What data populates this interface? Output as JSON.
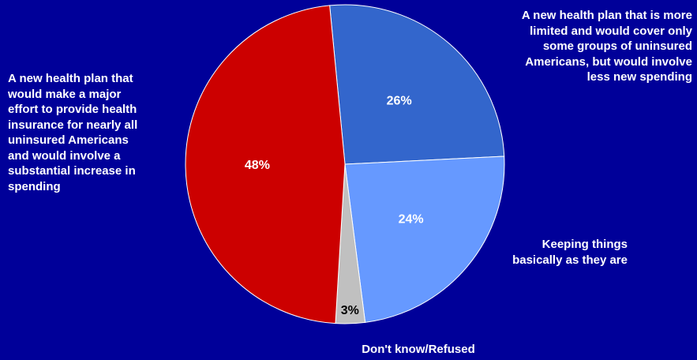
{
  "chart_data": {
    "type": "pie",
    "title": "",
    "slices": [
      {
        "label": "A new health plan that is more\nlimited and would cover only\nsome groups of uninsured\nAmericans, but would involve\nless new spending",
        "value": 26,
        "value_label": "26%",
        "color": "#3366CC",
        "value_text_color": "#FFFFFF"
      },
      {
        "label": "Keeping things\nbasically as they are",
        "value": 24,
        "value_label": "24%",
        "color": "#6699FF",
        "value_text_color": "#FFFFFF"
      },
      {
        "label": "Don't know/Refused",
        "value": 3,
        "value_label": "3%",
        "color": "#C0C0C0",
        "value_text_color": "#000000"
      },
      {
        "label": "A new health plan that\nwould make a major\neffort to provide health\ninsurance for nearly all\nuninsured Americans\nand would involve a\nsubstantial increase in\nspending",
        "value": 48,
        "value_label": "48%",
        "color": "#CC0000",
        "value_text_color": "#FFFFFF"
      }
    ],
    "background": "#000099",
    "legend": "none",
    "slice_edge_color": "#FFFFFF"
  }
}
